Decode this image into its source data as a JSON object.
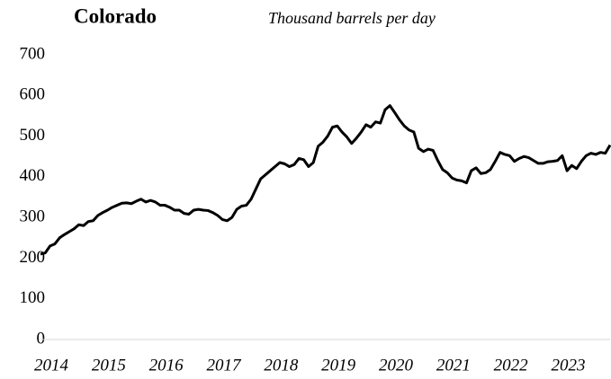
{
  "chart_data": {
    "type": "line",
    "title": "Colorado",
    "subtitle": "Thousand barrels per day",
    "categories": [
      "2014",
      null,
      null,
      null,
      null,
      null,
      null,
      null,
      null,
      null,
      null,
      null,
      "2015",
      null,
      null,
      null,
      null,
      null,
      null,
      null,
      null,
      null,
      null,
      null,
      "2016",
      null,
      null,
      null,
      null,
      null,
      null,
      null,
      null,
      null,
      null,
      null,
      "2017",
      null,
      null,
      null,
      null,
      null,
      null,
      null,
      null,
      null,
      null,
      null,
      "2018",
      null,
      null,
      null,
      null,
      null,
      null,
      null,
      null,
      null,
      null,
      null,
      "2019",
      null,
      null,
      null,
      null,
      null,
      null,
      null,
      null,
      null,
      null,
      null,
      "2020",
      null,
      null,
      null,
      null,
      null,
      null,
      null,
      null,
      null,
      null,
      null,
      "2021",
      null,
      null,
      null,
      null,
      null,
      null,
      null,
      null,
      null,
      null,
      null,
      "2022",
      null,
      null,
      null,
      null,
      null,
      null,
      null,
      null,
      null,
      null,
      null,
      "2023",
      null,
      null,
      null,
      null,
      null,
      null,
      null,
      null,
      null,
      null,
      null
    ],
    "values": [
      210,
      213,
      230,
      235,
      250,
      258,
      265,
      272,
      282,
      280,
      290,
      292,
      305,
      312,
      318,
      325,
      330,
      335,
      336,
      334,
      340,
      345,
      338,
      342,
      338,
      330,
      330,
      325,
      318,
      318,
      310,
      308,
      318,
      320,
      318,
      317,
      312,
      305,
      295,
      292,
      300,
      320,
      328,
      330,
      345,
      370,
      395,
      405,
      415,
      425,
      435,
      432,
      425,
      430,
      445,
      442,
      425,
      435,
      475,
      485,
      500,
      522,
      525,
      510,
      498,
      482,
      495,
      510,
      528,
      522,
      535,
      532,
      565,
      575,
      558,
      540,
      525,
      515,
      510,
      470,
      462,
      468,
      465,
      440,
      418,
      410,
      397,
      392,
      390,
      385,
      415,
      422,
      408,
      410,
      418,
      438,
      460,
      455,
      452,
      438,
      445,
      450,
      447,
      440,
      433,
      433,
      437,
      438,
      440,
      452,
      415,
      428,
      420,
      438,
      452,
      458,
      455,
      460,
      458,
      478
    ],
    "color": "#000000",
    "ylim": [
      0,
      700
    ],
    "yticks": [
      0,
      100,
      200,
      300,
      400,
      500,
      600,
      700
    ],
    "grid": false
  }
}
